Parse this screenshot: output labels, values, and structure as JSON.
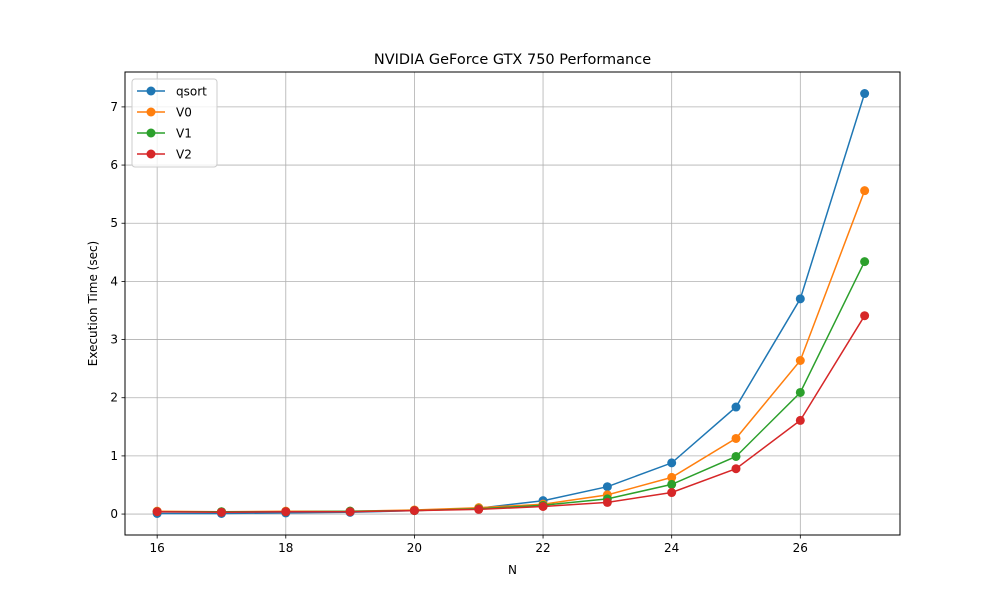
{
  "chart_data": {
    "type": "line",
    "title": "NVIDIA GeForce GTX 750 Performance",
    "xlabel": "N",
    "ylabel": "Execution Time (sec)",
    "x": [
      16,
      17,
      18,
      19,
      20,
      21,
      22,
      23,
      24,
      25,
      26,
      27
    ],
    "xlim": [
      15.5,
      27.55
    ],
    "ylim": [
      -0.36,
      7.6
    ],
    "xticks": [
      "16",
      "18",
      "20",
      "22",
      "24",
      "26"
    ],
    "xtick_values": [
      16,
      18,
      20,
      22,
      24,
      26
    ],
    "yticks": [
      "0",
      "1",
      "2",
      "3",
      "4",
      "5",
      "6",
      "7"
    ],
    "ytick_values": [
      0,
      1,
      2,
      3,
      4,
      5,
      6,
      7
    ],
    "grid": true,
    "legend_position": "top-left",
    "series": [
      {
        "name": "qsort",
        "color": "#1f77b4",
        "values": [
          0.01,
          0.01,
          0.02,
          0.03,
          0.06,
          0.1,
          0.23,
          0.47,
          0.88,
          1.84,
          3.7,
          7.23
        ]
      },
      {
        "name": "V0",
        "color": "#ff7f0e",
        "values": [
          0.05,
          0.04,
          0.05,
          0.05,
          0.07,
          0.11,
          0.17,
          0.33,
          0.63,
          1.3,
          2.64,
          5.56
        ]
      },
      {
        "name": "V1",
        "color": "#2ca02c",
        "values": [
          0.04,
          0.04,
          0.04,
          0.05,
          0.06,
          0.09,
          0.15,
          0.26,
          0.51,
          0.99,
          2.09,
          4.34
        ]
      },
      {
        "name": "V2",
        "color": "#d62728",
        "values": [
          0.04,
          0.03,
          0.04,
          0.04,
          0.06,
          0.08,
          0.13,
          0.2,
          0.37,
          0.78,
          1.61,
          3.41
        ]
      }
    ]
  }
}
